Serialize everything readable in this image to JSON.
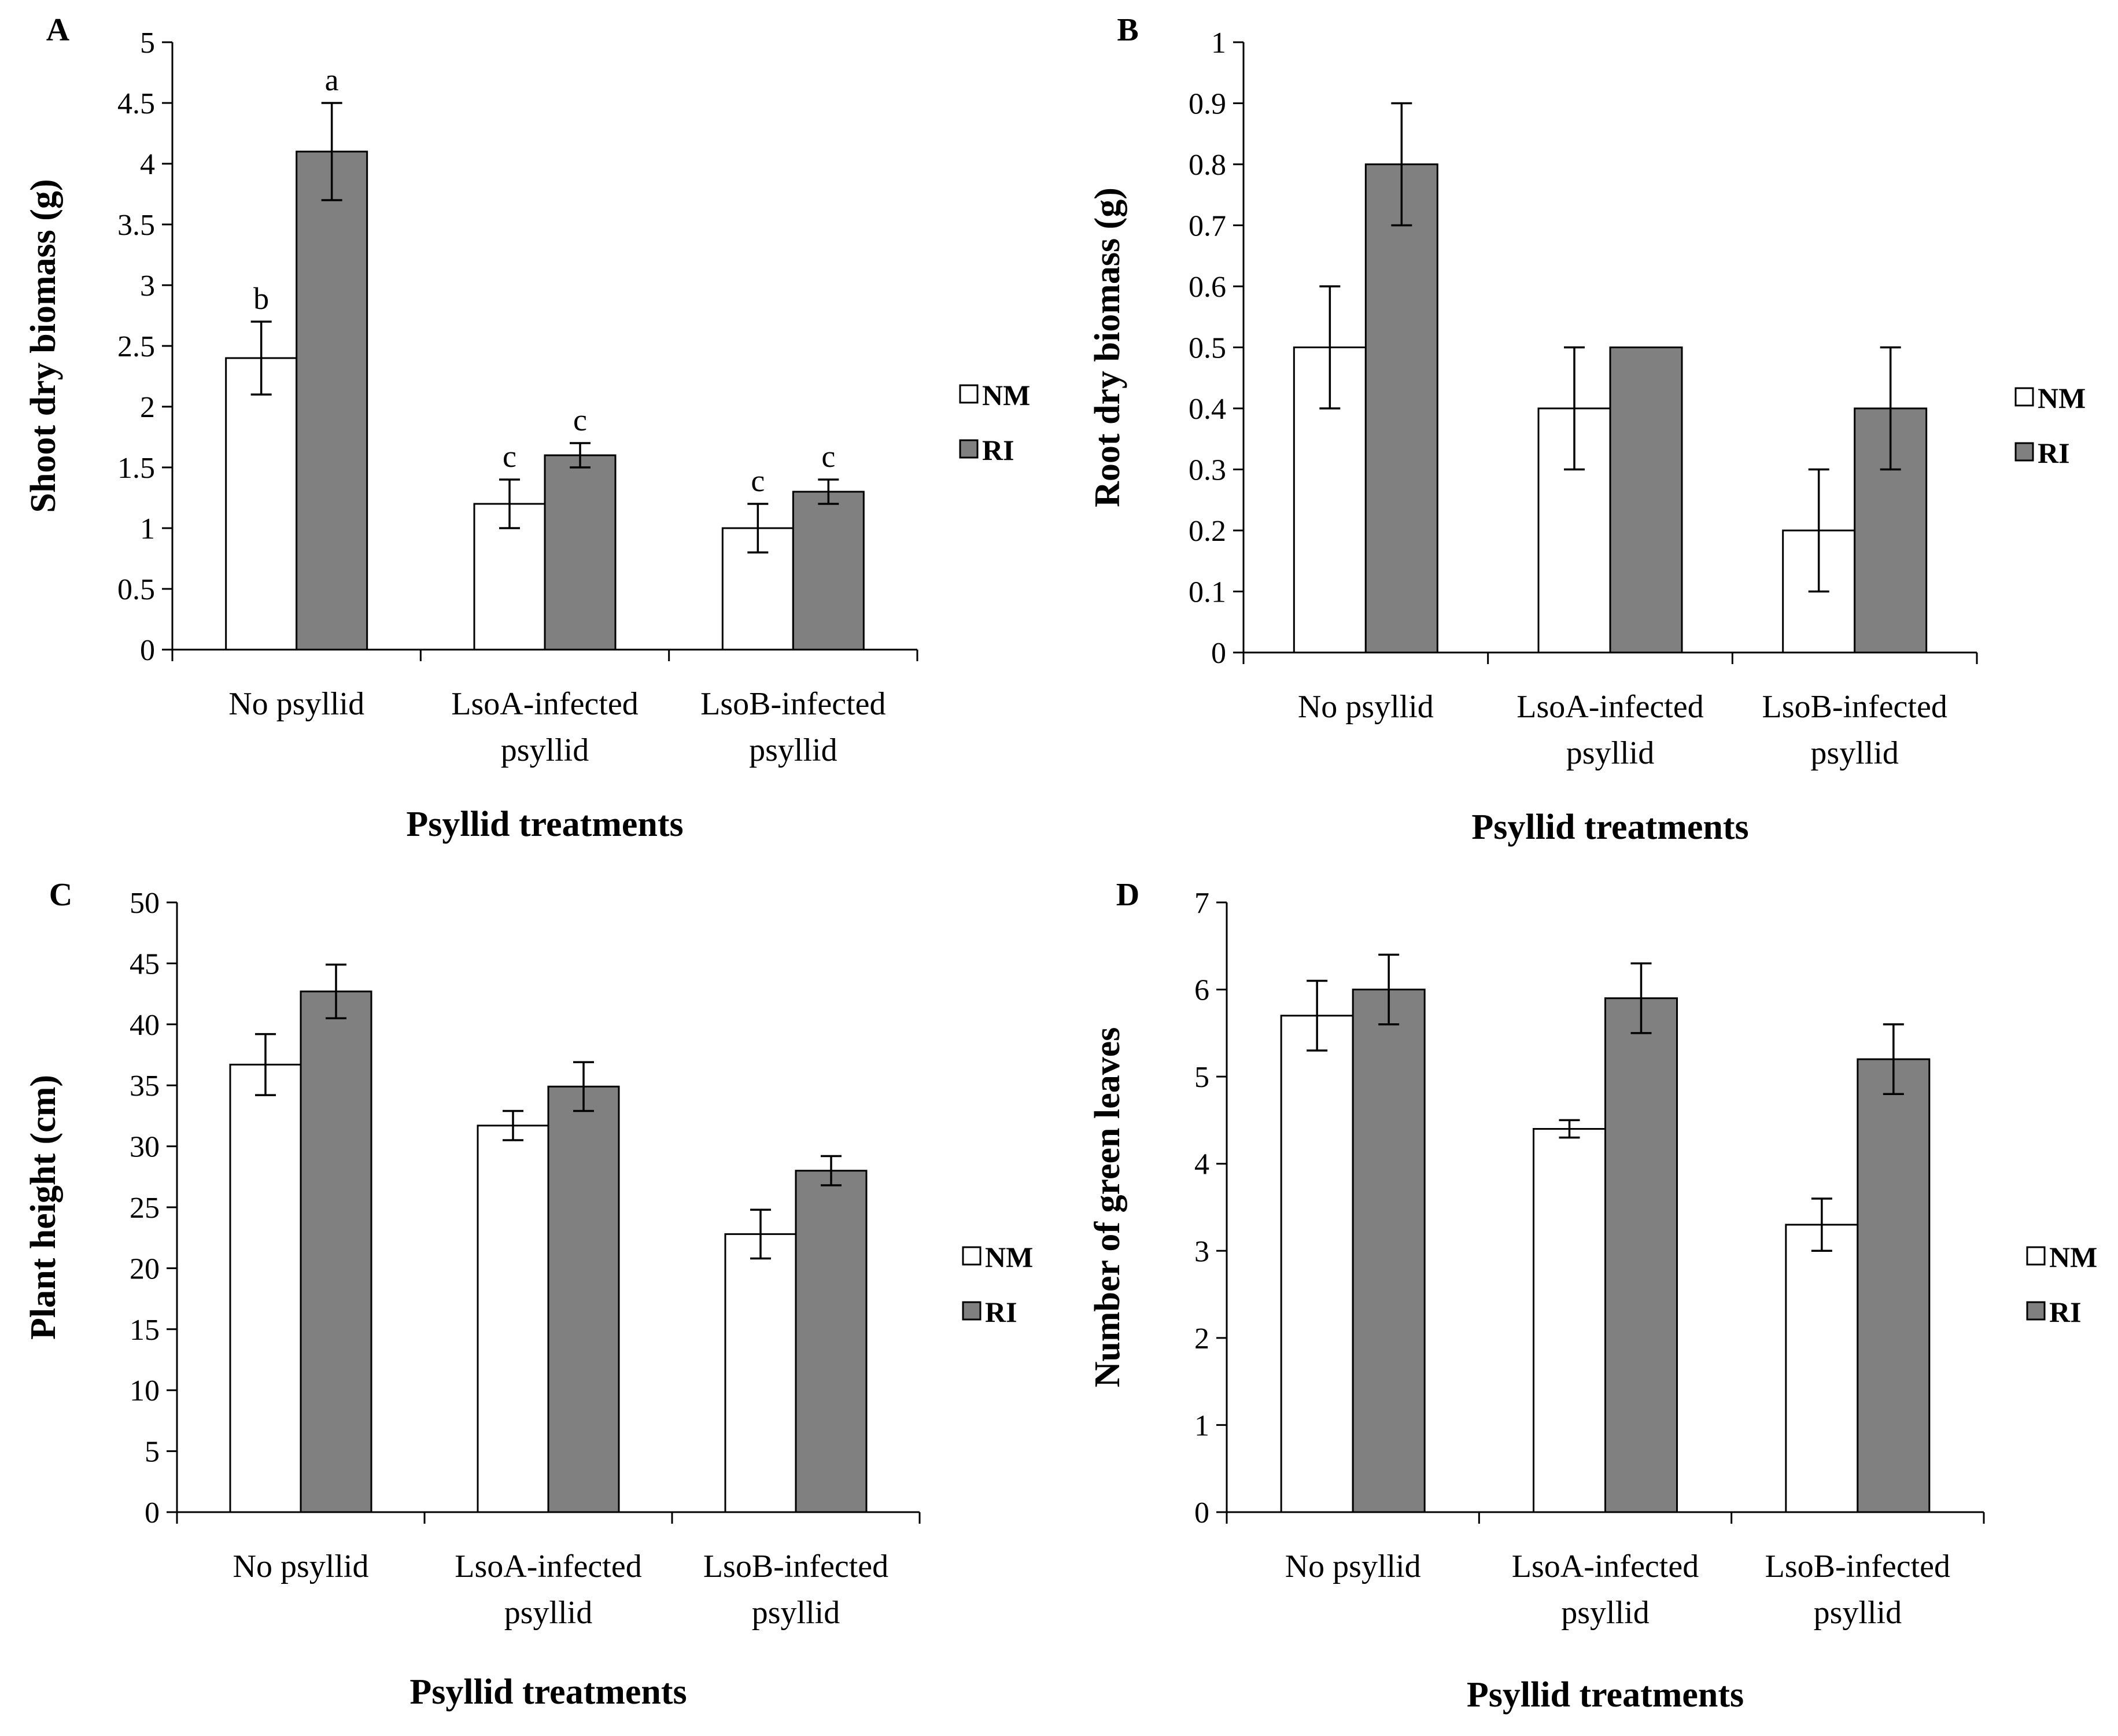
{
  "colors": {
    "NM": "#ffffff",
    "RI": "#808080",
    "stroke": "#000000"
  },
  "chart_data": [
    {
      "id": "A",
      "type": "bar",
      "panel_label": "A",
      "ylabel": "Shoot dry biomass (g)",
      "xlabel": "Psyllid treatments",
      "categories": [
        [
          "No psyllid"
        ],
        [
          "LsoA-infected",
          "psyllid"
        ],
        [
          "LsoB-infected",
          "psyllid"
        ]
      ],
      "ylim": [
        0,
        5
      ],
      "yticks": [
        0,
        0.5,
        1,
        1.5,
        2,
        2.5,
        3,
        3.5,
        4,
        4.5,
        5
      ],
      "ytick_labels": [
        "0",
        "0.5",
        "1",
        "1.5",
        "2",
        "2.5",
        "3",
        "3.5",
        "4",
        "4.5",
        "5"
      ],
      "legend": [
        "NM",
        "RI"
      ],
      "series": [
        {
          "name": "NM",
          "values": [
            2.4,
            1.2,
            1.0
          ],
          "errors": [
            0.3,
            0.2,
            0.2
          ],
          "labels": [
            "b",
            "c",
            "c"
          ]
        },
        {
          "name": "RI",
          "values": [
            4.1,
            1.6,
            1.3
          ],
          "errors": [
            0.4,
            0.1,
            0.1
          ],
          "labels": [
            "a",
            "c",
            "c"
          ]
        }
      ]
    },
    {
      "id": "B",
      "type": "bar",
      "panel_label": "B",
      "ylabel": "Root dry biomass (g)",
      "xlabel": "Psyllid treatments",
      "categories": [
        [
          "No psyllid"
        ],
        [
          "LsoA-infected",
          "psyllid"
        ],
        [
          "LsoB-infected",
          "psyllid"
        ]
      ],
      "ylim": [
        0,
        1
      ],
      "yticks": [
        0,
        0.1,
        0.2,
        0.3,
        0.4,
        0.5,
        0.6,
        0.7,
        0.8,
        0.9,
        1
      ],
      "ytick_labels": [
        "0",
        "0.1",
        "0.2",
        "0.3",
        "0.4",
        "0.5",
        "0.6",
        "0.7",
        "0.8",
        "0.9",
        "1"
      ],
      "legend": [
        "NM",
        "RI"
      ],
      "series": [
        {
          "name": "NM",
          "values": [
            0.5,
            0.4,
            0.2
          ],
          "errors": [
            0.1,
            0.1,
            0.1
          ],
          "labels": [
            "",
            "",
            ""
          ]
        },
        {
          "name": "RI",
          "values": [
            0.8,
            0.5,
            0.4
          ],
          "errors": [
            0.1,
            0.0,
            0.1
          ],
          "labels": [
            "",
            "",
            ""
          ]
        }
      ]
    },
    {
      "id": "C",
      "type": "bar",
      "panel_label": "C",
      "ylabel": "Plant height (cm)",
      "xlabel": "Psyllid treatments",
      "categories": [
        [
          "No psyllid"
        ],
        [
          "LsoA-infected",
          "psyllid"
        ],
        [
          "LsoB-infected",
          "psyllid"
        ]
      ],
      "ylim": [
        0,
        50
      ],
      "yticks": [
        0,
        5,
        10,
        15,
        20,
        25,
        30,
        35,
        40,
        45,
        50
      ],
      "ytick_labels": [
        "0",
        "5",
        "10",
        "15",
        "20",
        "25",
        "30",
        "35",
        "40",
        "45",
        "50"
      ],
      "legend": [
        "NM",
        "RI"
      ],
      "series": [
        {
          "name": "NM",
          "values": [
            36.7,
            31.7,
            22.8
          ],
          "errors": [
            2.5,
            1.2,
            2.0
          ],
          "labels": [
            "",
            "",
            ""
          ]
        },
        {
          "name": "RI",
          "values": [
            42.7,
            34.9,
            28.0
          ],
          "errors": [
            2.2,
            2.0,
            1.2
          ],
          "labels": [
            "",
            "",
            ""
          ]
        }
      ]
    },
    {
      "id": "D",
      "type": "bar",
      "panel_label": "D",
      "ylabel": "Number of green leaves",
      "xlabel": "Psyllid treatments",
      "categories": [
        [
          "No psyllid"
        ],
        [
          "LsoA-infected",
          "psyllid"
        ],
        [
          "LsoB-infected",
          "psyllid"
        ]
      ],
      "ylim": [
        0,
        7
      ],
      "yticks": [
        0,
        1,
        2,
        3,
        4,
        5,
        6,
        7
      ],
      "ytick_labels": [
        "0",
        "1",
        "2",
        "3",
        "4",
        "5",
        "6",
        "7"
      ],
      "legend": [
        "NM",
        "RI"
      ],
      "series": [
        {
          "name": "NM",
          "values": [
            5.7,
            4.4,
            3.3
          ],
          "errors": [
            0.4,
            0.1,
            0.3
          ],
          "labels": [
            "",
            "",
            ""
          ]
        },
        {
          "name": "RI",
          "values": [
            6.0,
            5.9,
            5.2
          ],
          "errors": [
            0.4,
            0.4,
            0.4
          ],
          "labels": [
            "",
            "",
            ""
          ]
        }
      ]
    }
  ]
}
